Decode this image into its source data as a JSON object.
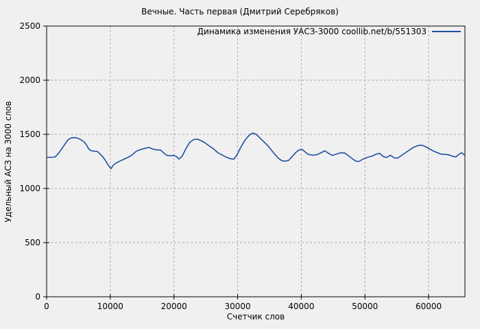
{
  "title": "Вечные. Часть первая (Дмитрий Серебряков)",
  "legend": {
    "label": "Динамика изменения УАСЗ-3000  coollib.net/b/551303"
  },
  "colors": {
    "background": "#f0f0f0",
    "axis": "#000000",
    "grid": "#a9a9a9",
    "line": "#1f4f9f",
    "text": "#000000"
  },
  "chart_data": {
    "type": "line",
    "title": "Вечные. Часть первая (Дмитрий Серебряков)",
    "xlabel": "Счетчик слов",
    "ylabel": "Удельный АСЗ на 3000 слов",
    "xlim": [
      0,
      65700
    ],
    "ylim": [
      0,
      2500
    ],
    "xticks": [
      0,
      10000,
      20000,
      30000,
      40000,
      50000,
      60000
    ],
    "yticks": [
      0,
      500,
      1000,
      1500,
      2000,
      2500
    ],
    "grid": true,
    "grid_style": "dashed",
    "legend_position": "top-right",
    "series": [
      {
        "name": "Динамика изменения УАСЗ-3000  coollib.net/b/551303",
        "color": "#1f4f9f",
        "points": [
          [
            0,
            1288
          ],
          [
            700,
            1288
          ],
          [
            1300,
            1290
          ],
          [
            1800,
            1320
          ],
          [
            2400,
            1368
          ],
          [
            2900,
            1412
          ],
          [
            3400,
            1452
          ],
          [
            3900,
            1468
          ],
          [
            4400,
            1470
          ],
          [
            4900,
            1464
          ],
          [
            5400,
            1450
          ],
          [
            5900,
            1430
          ],
          [
            6300,
            1398
          ],
          [
            6600,
            1366
          ],
          [
            7000,
            1348
          ],
          [
            7500,
            1344
          ],
          [
            8000,
            1342
          ],
          [
            8400,
            1318
          ],
          [
            8800,
            1294
          ],
          [
            9200,
            1262
          ],
          [
            9600,
            1222
          ],
          [
            10100,
            1183
          ],
          [
            10500,
            1218
          ],
          [
            11000,
            1238
          ],
          [
            11600,
            1255
          ],
          [
            12200,
            1272
          ],
          [
            12800,
            1288
          ],
          [
            13400,
            1308
          ],
          [
            14100,
            1345
          ],
          [
            14800,
            1360
          ],
          [
            15500,
            1372
          ],
          [
            16100,
            1380
          ],
          [
            16600,
            1365
          ],
          [
            17200,
            1357
          ],
          [
            17900,
            1355
          ],
          [
            18400,
            1328
          ],
          [
            18900,
            1305
          ],
          [
            19500,
            1302
          ],
          [
            20000,
            1306
          ],
          [
            20400,
            1294
          ],
          [
            20800,
            1272
          ],
          [
            21300,
            1300
          ],
          [
            21900,
            1370
          ],
          [
            22500,
            1428
          ],
          [
            23100,
            1452
          ],
          [
            23700,
            1456
          ],
          [
            24200,
            1443
          ],
          [
            24800,
            1424
          ],
          [
            25500,
            1395
          ],
          [
            26200,
            1366
          ],
          [
            26900,
            1330
          ],
          [
            27600,
            1308
          ],
          [
            28200,
            1290
          ],
          [
            28800,
            1276
          ],
          [
            29400,
            1271
          ],
          [
            29900,
            1308
          ],
          [
            30300,
            1358
          ],
          [
            30700,
            1400
          ],
          [
            31100,
            1442
          ],
          [
            31600,
            1478
          ],
          [
            32000,
            1500
          ],
          [
            32400,
            1512
          ],
          [
            32900,
            1500
          ],
          [
            33500,
            1468
          ],
          [
            34100,
            1432
          ],
          [
            34700,
            1398
          ],
          [
            35300,
            1355
          ],
          [
            35900,
            1312
          ],
          [
            36400,
            1280
          ],
          [
            36900,
            1258
          ],
          [
            37400,
            1252
          ],
          [
            38000,
            1258
          ],
          [
            38500,
            1292
          ],
          [
            39100,
            1330
          ],
          [
            39600,
            1355
          ],
          [
            40100,
            1362
          ],
          [
            40600,
            1338
          ],
          [
            41100,
            1315
          ],
          [
            41900,
            1307
          ],
          [
            42600,
            1315
          ],
          [
            43200,
            1333
          ],
          [
            43700,
            1348
          ],
          [
            44300,
            1324
          ],
          [
            44900,
            1306
          ],
          [
            45500,
            1317
          ],
          [
            46200,
            1330
          ],
          [
            46800,
            1328
          ],
          [
            47400,
            1303
          ],
          [
            48000,
            1275
          ],
          [
            48600,
            1252
          ],
          [
            49100,
            1250
          ],
          [
            49700,
            1272
          ],
          [
            50400,
            1288
          ],
          [
            51100,
            1298
          ],
          [
            51700,
            1316
          ],
          [
            52300,
            1325
          ],
          [
            52900,
            1293
          ],
          [
            53400,
            1287
          ],
          [
            54000,
            1307
          ],
          [
            54600,
            1283
          ],
          [
            55100,
            1280
          ],
          [
            55700,
            1303
          ],
          [
            56400,
            1332
          ],
          [
            57100,
            1360
          ],
          [
            57700,
            1382
          ],
          [
            58300,
            1396
          ],
          [
            58900,
            1400
          ],
          [
            59500,
            1387
          ],
          [
            60100,
            1367
          ],
          [
            60700,
            1347
          ],
          [
            61300,
            1332
          ],
          [
            61900,
            1318
          ],
          [
            62600,
            1315
          ],
          [
            63200,
            1311
          ],
          [
            63800,
            1296
          ],
          [
            64300,
            1292
          ],
          [
            64800,
            1318
          ],
          [
            65200,
            1330
          ],
          [
            65700,
            1305
          ]
        ]
      }
    ]
  }
}
